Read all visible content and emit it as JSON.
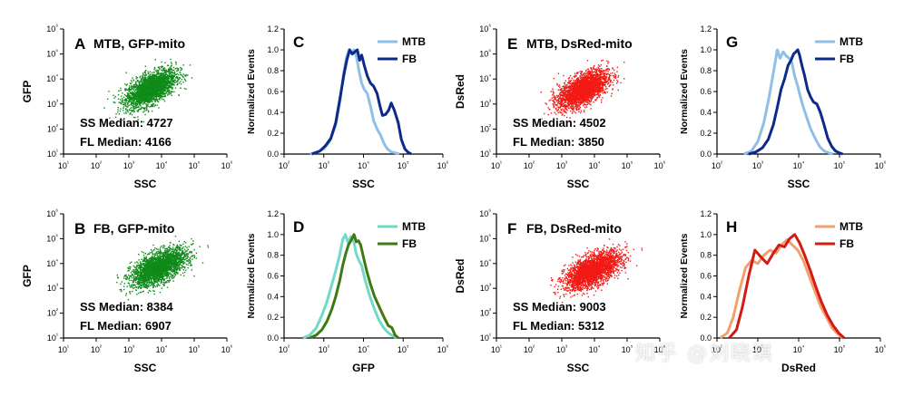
{
  "watermark": "知乎 @刘晓琪",
  "tick_labels": {
    "scatter_y": [
      "10¹",
      "10²",
      "10³",
      "10⁴",
      "10⁵",
      "10⁶"
    ],
    "x": [
      "10¹",
      "10²",
      "10³",
      "10⁴",
      "10⁵",
      "10⁶"
    ],
    "hist_x": [
      "10²",
      "10³",
      "10⁴",
      "10⁵",
      "10⁶"
    ],
    "hist_y": [
      "0.0",
      "0.2",
      "0.4",
      "0.6",
      "0.8",
      "1.0",
      "1.2"
    ]
  },
  "colors": {
    "gfp_dots": "#0f8a1a",
    "dsred_dots": "#f21a14",
    "mtb_ssc": "#8fbfe6",
    "fb_ssc": "#0c2a8a",
    "mtb_gfp": "#72dac4",
    "fb_gfp": "#3d7a12",
    "mtb_dsred": "#f2a070",
    "fb_dsred": "#d41a12"
  },
  "chart_data": [
    {
      "id": "A",
      "type": "scatter",
      "letter": "A",
      "title": "MTB, GFP-mito",
      "xlabel": "SSC",
      "ylabel": "GFP",
      "xlim": [
        10,
        1000000
      ],
      "ylim": [
        10,
        1000000
      ],
      "ss_median_label": "SS Median: 4727",
      "fl_median_label": "FL Median: 4166",
      "ss_median": 4727,
      "fl_median": 4166,
      "color": "gfp_dots"
    },
    {
      "id": "B",
      "type": "scatter",
      "letter": "B",
      "title": "FB, GFP-mito",
      "xlabel": "SSC",
      "ylabel": "GFP",
      "xlim": [
        10,
        1000000
      ],
      "ylim": [
        10,
        1000000
      ],
      "ss_median_label": "SS Median: 8384",
      "fl_median_label": "FL Median: 6907",
      "ss_median": 8384,
      "fl_median": 6907,
      "color": "gfp_dots"
    },
    {
      "id": "E",
      "type": "scatter",
      "letter": "E",
      "title": "MTB, DsRed-mito",
      "xlabel": "SSC",
      "ylabel": "DsRed",
      "xlim": [
        10,
        1000000
      ],
      "ylim": [
        10,
        1000000
      ],
      "ss_median_label": "SS Median: 4502",
      "fl_median_label": "FL Median: 3850",
      "ss_median": 4502,
      "fl_median": 3850,
      "color": "dsred_dots"
    },
    {
      "id": "F",
      "type": "scatter",
      "letter": "F",
      "title": "FB, DsRed-mito",
      "xlabel": "SSC",
      "ylabel": "DsRed",
      "xlim": [
        10,
        1000000
      ],
      "ylim": [
        10,
        1000000
      ],
      "ss_median_label": "SS Median: 9003",
      "fl_median_label": "FL Median: 5312",
      "ss_median": 9003,
      "fl_median": 5312,
      "color": "dsred_dots"
    },
    {
      "id": "C",
      "type": "line",
      "letter": "C",
      "xlabel": "SSC",
      "ylabel": "Normalized Events",
      "xlim": [
        100,
        1000000
      ],
      "ylim": [
        0,
        1.2
      ],
      "series": [
        {
          "name": "MTB",
          "color": "mtb_ssc",
          "x": [
            450,
            700,
            1000,
            1400,
            2000,
            2600,
            3100,
            3700,
            4300,
            5000,
            5800,
            6700,
            7700,
            9000,
            10500,
            12500,
            15000,
            18000,
            22000,
            27000,
            33000,
            40000,
            50000,
            65000,
            80000
          ],
          "y": [
            0,
            0.02,
            0.05,
            0.12,
            0.28,
            0.52,
            0.75,
            0.92,
            1.0,
            0.97,
            1.0,
            0.93,
            0.8,
            0.68,
            0.62,
            0.58,
            0.46,
            0.32,
            0.24,
            0.18,
            0.1,
            0.05,
            0.02,
            0.01,
            0
          ]
        },
        {
          "name": "FB",
          "color": "fb_ssc",
          "x": [
            500,
            800,
            1100,
            1500,
            2000,
            2600,
            3200,
            3800,
            4500,
            5200,
            6000,
            7000,
            8000,
            9000,
            10500,
            12500,
            15000,
            18000,
            22000,
            26000,
            30000,
            36000,
            43000,
            50000,
            60000,
            75000,
            90000,
            110000,
            130000,
            160000
          ],
          "y": [
            0,
            0.03,
            0.08,
            0.15,
            0.3,
            0.55,
            0.76,
            0.9,
            1.0,
            0.96,
            0.98,
            1.0,
            0.9,
            0.95,
            0.85,
            0.75,
            0.68,
            0.65,
            0.58,
            0.46,
            0.37,
            0.38,
            0.42,
            0.49,
            0.42,
            0.3,
            0.14,
            0.05,
            0.02,
            0
          ]
        }
      ]
    },
    {
      "id": "D",
      "type": "line",
      "letter": "D",
      "xlabel": "GFP",
      "ylabel": "Normalized Events",
      "xlim": [
        100,
        1000000
      ],
      "ylim": [
        0,
        1.2
      ],
      "series": [
        {
          "name": "MTB",
          "color": "mtb_gfp",
          "x": [
            300,
            450,
            650,
            900,
            1200,
            1600,
            2000,
            2500,
            3000,
            3500,
            4100,
            4800,
            5600,
            6500,
            7600,
            9000,
            11000,
            14000,
            18000,
            24000,
            32000,
            42000,
            55000,
            70000
          ],
          "y": [
            0,
            0.03,
            0.1,
            0.22,
            0.35,
            0.52,
            0.65,
            0.8,
            0.95,
            1.0,
            0.92,
            0.98,
            0.95,
            0.82,
            0.75,
            0.7,
            0.56,
            0.42,
            0.3,
            0.18,
            0.1,
            0.05,
            0.02,
            0
          ]
        },
        {
          "name": "FB",
          "color": "fb_gfp",
          "x": [
            450,
            650,
            900,
            1200,
            1600,
            2000,
            2500,
            3000,
            3600,
            4200,
            5000,
            5800,
            6600,
            7500,
            8500,
            10000,
            12000,
            15000,
            19000,
            25000,
            33000,
            42000,
            52000,
            62000,
            75000
          ],
          "y": [
            0,
            0.03,
            0.08,
            0.16,
            0.28,
            0.4,
            0.55,
            0.7,
            0.82,
            0.9,
            0.95,
            1.0,
            0.93,
            0.94,
            0.9,
            0.78,
            0.65,
            0.52,
            0.4,
            0.3,
            0.2,
            0.12,
            0.1,
            0.03,
            0
          ]
        }
      ]
    },
    {
      "id": "G",
      "type": "line",
      "letter": "G",
      "xlabel": "SSC",
      "ylabel": "Normalized Events",
      "xlim": [
        100,
        1000000
      ],
      "ylim": [
        0,
        1.2
      ],
      "series": [
        {
          "name": "MTB",
          "color": "mtb_ssc",
          "x": [
            450,
            700,
            1000,
            1400,
            1900,
            2500,
            3000,
            3500,
            4200,
            5000,
            5800,
            6800,
            8000,
            9500,
            11000,
            13000,
            15500,
            18500,
            22000,
            27000,
            33000,
            42000,
            55000,
            70000
          ],
          "y": [
            0,
            0.03,
            0.12,
            0.3,
            0.55,
            0.82,
            1.0,
            0.92,
            0.98,
            0.94,
            0.92,
            0.88,
            0.75,
            0.65,
            0.55,
            0.45,
            0.36,
            0.27,
            0.2,
            0.13,
            0.07,
            0.03,
            0.01,
            0
          ]
        },
        {
          "name": "FB",
          "color": "fb_ssc",
          "x": [
            600,
            900,
            1300,
            1800,
            2400,
            3000,
            3700,
            4500,
            5500,
            6500,
            7500,
            8500,
            9500,
            10500,
            12000,
            14000,
            16500,
            19500,
            23000,
            28000,
            34000,
            42000,
            52000,
            65000,
            80000,
            100000,
            120000
          ],
          "y": [
            0,
            0.02,
            0.06,
            0.14,
            0.28,
            0.45,
            0.62,
            0.72,
            0.85,
            0.9,
            0.96,
            0.98,
            1.0,
            0.95,
            0.85,
            0.75,
            0.62,
            0.55,
            0.5,
            0.48,
            0.4,
            0.28,
            0.15,
            0.07,
            0.03,
            0.01,
            0
          ]
        }
      ]
    },
    {
      "id": "H",
      "type": "line",
      "letter": "H",
      "xlabel": "DsRed",
      "ylabel": "Normalized Events",
      "xlim": [
        100,
        1000000
      ],
      "ylim": [
        0,
        1.2
      ],
      "series": [
        {
          "name": "MTB",
          "color": "mtb_dsred",
          "x": [
            120,
            180,
            250,
            350,
            500,
            700,
            1000,
            1400,
            2000,
            2800,
            3800,
            5200,
            7000,
            9500,
            13000,
            18000,
            25000,
            35000,
            48000,
            65000,
            90000,
            120000
          ],
          "y": [
            0,
            0.05,
            0.2,
            0.45,
            0.68,
            0.75,
            0.72,
            0.8,
            0.85,
            0.82,
            0.9,
            0.95,
            0.9,
            0.85,
            0.75,
            0.6,
            0.45,
            0.3,
            0.2,
            0.1,
            0.04,
            0
          ]
        },
        {
          "name": "FB",
          "color": "fb_dsred",
          "x": [
            200,
            300,
            420,
            600,
            850,
            1200,
            1700,
            2400,
            3300,
            4500,
            6000,
            8000,
            10500,
            14000,
            19000,
            26000,
            36000,
            50000,
            70000,
            95000,
            130000
          ],
          "y": [
            0,
            0.08,
            0.3,
            0.6,
            0.85,
            0.78,
            0.72,
            0.82,
            0.9,
            0.88,
            0.96,
            1.0,
            0.92,
            0.8,
            0.66,
            0.5,
            0.35,
            0.22,
            0.12,
            0.05,
            0
          ]
        }
      ]
    }
  ]
}
